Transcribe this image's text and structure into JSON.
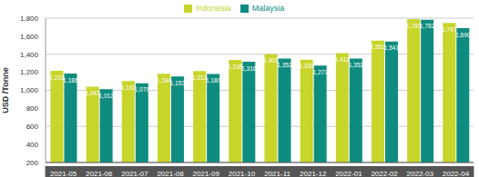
{
  "chart_data": {
    "type": "bar",
    "y_label": "USD /Tonne",
    "categories": [
      "2021-05",
      "2021-06",
      "2021-07",
      "2021-08",
      "2021-09",
      "2021-10",
      "2021-11",
      "2021-12",
      "2022-01",
      "2022-02",
      "2022-03",
      "2022-04"
    ],
    "series": [
      {
        "name": "Indonesia",
        "color": "#c8d52b",
        "values": [
          1216,
          1041,
          1102,
          1184,
          1213,
          1336,
          1401,
          1339,
          1413,
          1551,
          1789,
          1747
        ],
        "value_labels": [
          "1,216",
          "1,041",
          "1,102",
          "1,184",
          "1,213",
          "1,336",
          "1,401",
          "1,339",
          "1,413",
          "1,551",
          "1,789",
          "1,747"
        ]
      },
      {
        "name": "Malaysia",
        "color": "#0e8c7f",
        "values": [
          1186,
          1012,
          1079,
          1153,
          1180,
          1316,
          1352,
          1273,
          1353,
          1541,
          1782,
          1690
        ],
        "value_labels": [
          "1,186",
          "1,012",
          "1,079",
          "1,153",
          "1,180",
          "1,316",
          "1,352",
          "1,273",
          "1,353",
          "1,541",
          "1,782",
          "1,690"
        ]
      }
    ],
    "ylim": [
      200,
      1800
    ],
    "yticks": [
      {
        "value": 200,
        "label": "200"
      },
      {
        "value": 400,
        "label": "400"
      },
      {
        "value": 600,
        "label": "600"
      },
      {
        "value": 800,
        "label": "800"
      },
      {
        "value": 1000,
        "label": "1,000"
      },
      {
        "value": 1200,
        "label": "1,200"
      },
      {
        "value": 1400,
        "label": "1,400"
      },
      {
        "value": 1600,
        "label": "1,600"
      },
      {
        "value": 1800,
        "label": "1,800"
      }
    ],
    "grid": true,
    "legend": "top",
    "data_labels": true
  }
}
